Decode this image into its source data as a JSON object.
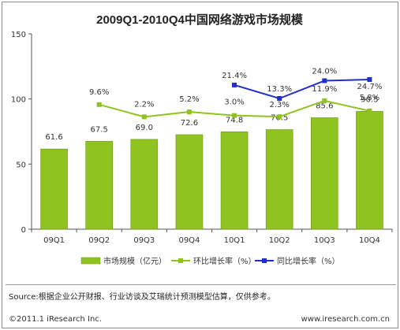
{
  "title": "2009Q1-2010Q4中国网络游戏市场规模",
  "legend": {
    "bar": "市场规模（亿元）",
    "qoq": "环比增长率（%）",
    "yoy": "同比增长率（%）"
  },
  "source": "Source:根据企业公开财报、行业访谈及艾瑞统计预测模型估算，仅供参考。",
  "footer": {
    "copyright": "©2011.1 iResearch Inc.",
    "website": "www.iresearch.com.cn"
  },
  "colors": {
    "bar": "#8fc31f",
    "qoq": "#8fc31f",
    "yoy": "#1f2fc8"
  },
  "chart_data": {
    "type": "bar",
    "title": "2009Q1-2010Q4中国网络游戏市场规模",
    "categories": [
      "09Q1",
      "09Q2",
      "09Q3",
      "09Q4",
      "10Q1",
      "10Q2",
      "10Q3",
      "10Q4"
    ],
    "ylim": [
      0,
      150
    ],
    "yticks": [
      0,
      50,
      100,
      150
    ],
    "ytick_labels": [
      "0",
      "50",
      "100",
      "150"
    ],
    "grid": false,
    "legend_position": "bottom",
    "series": [
      {
        "name": "市场规模（亿元）",
        "type": "bar",
        "values": [
          61.6,
          67.5,
          69.0,
          72.6,
          74.8,
          76.5,
          85.6,
          90.5
        ],
        "labels": [
          "61.6",
          "67.5",
          "69.0",
          "72.6",
          "74.8",
          "76.5",
          "85.6",
          "90.5"
        ]
      },
      {
        "name": "环比增长率（%）",
        "type": "line",
        "values": [
          null,
          9.6,
          2.2,
          5.2,
          3.0,
          2.3,
          11.9,
          5.8
        ],
        "labels": [
          null,
          "9.6%",
          "2.2%",
          "5.2%",
          "3.0%",
          "2.3%",
          "11.9%",
          "5.8%"
        ]
      },
      {
        "name": "同比增长率（%）",
        "type": "line",
        "values": [
          null,
          null,
          null,
          null,
          21.4,
          13.3,
          24.0,
          24.7
        ],
        "labels": [
          null,
          null,
          null,
          null,
          "21.4%",
          "13.3%",
          "24.0%",
          "24.7%"
        ]
      }
    ]
  }
}
